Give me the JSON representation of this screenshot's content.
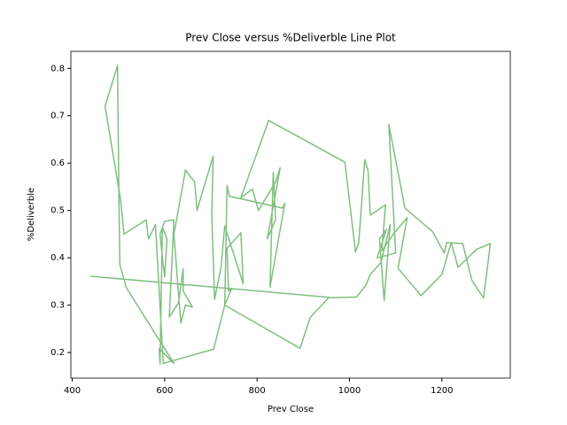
{
  "chart_data": {
    "type": "line",
    "title": "Prev Close versus %Deliverble Line Plot",
    "x_label": "Prev Close",
    "y_label": "%Deliverble",
    "x": [
      440,
      963,
      1015,
      1035,
      1045,
      1068,
      1088,
      1075,
      1065,
      1080,
      1060,
      1100,
      1085,
      1120,
      1180,
      1205,
      1210,
      1245,
      1265,
      1290,
      1305,
      1275,
      1235,
      1220,
      1200,
      1155,
      1105,
      1125,
      1095,
      1070,
      1078,
      1045,
      1040,
      1033,
      1020,
      1013,
      990,
      825,
      765,
      790,
      803,
      840,
      850,
      822,
      840,
      835,
      828,
      860,
      855,
      740,
      735,
      730,
      745,
      738,
      735,
      765,
      770,
      730,
      722,
      708,
      702,
      705,
      670,
      665,
      645,
      620,
      635,
      645,
      660,
      640,
      640,
      630,
      610,
      620,
      600,
      590,
      595,
      600,
      605,
      595,
      590,
      588,
      620,
      517,
      503,
      501,
      498,
      471,
      505,
      512,
      560,
      565,
      580,
      597,
      706,
      730,
      893,
      915,
      955
    ],
    "series": [
      {
        "name": "%Deliverble",
        "color": "#7fbf7f",
        "values": [
          0.361,
          0.316,
          0.317,
          0.341,
          0.365,
          0.39,
          0.47,
          0.31,
          0.44,
          0.46,
          0.4,
          0.41,
          0.682,
          0.505,
          0.455,
          0.41,
          0.432,
          0.43,
          0.352,
          0.315,
          0.43,
          0.418,
          0.38,
          0.432,
          0.365,
          0.32,
          0.378,
          0.485,
          0.45,
          0.415,
          0.512,
          0.49,
          0.585,
          0.607,
          0.432,
          0.412,
          0.602,
          0.69,
          0.527,
          0.545,
          0.5,
          0.56,
          0.59,
          0.44,
          0.48,
          0.58,
          0.338,
          0.515,
          0.505,
          0.53,
          0.553,
          0.3,
          0.335,
          0.33,
          0.42,
          0.453,
          0.345,
          0.467,
          0.38,
          0.312,
          0.49,
          0.615,
          0.5,
          0.56,
          0.585,
          0.45,
          0.262,
          0.3,
          0.296,
          0.33,
          0.377,
          0.305,
          0.275,
          0.48,
          0.477,
          0.45,
          0.4,
          0.36,
          0.44,
          0.465,
          0.175,
          0.208,
          0.177,
          0.337,
          0.386,
          0.523,
          0.806,
          0.72,
          0.52,
          0.45,
          0.48,
          0.44,
          0.47,
          0.177,
          0.207,
          0.3,
          0.209,
          0.274,
          0.316
        ]
      }
    ],
    "xlim": [
      397,
      1348
    ],
    "xticks": [
      400,
      600,
      800,
      1000,
      1200
    ],
    "ylim": [
      0.146,
      0.836
    ],
    "yticks": [
      0.2,
      0.3,
      0.4,
      0.5,
      0.6,
      0.7,
      0.8
    ],
    "grid": false
  }
}
